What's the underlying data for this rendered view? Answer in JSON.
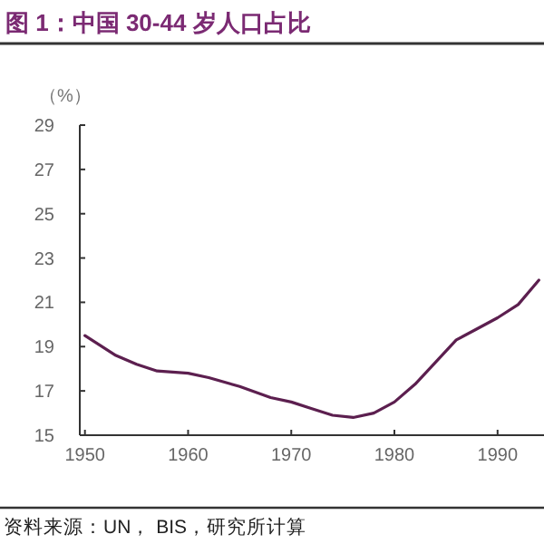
{
  "chart_data": {
    "type": "line",
    "title": "图 1：中国 30-44 岁人口占比",
    "ylabel": "（%）",
    "annotations": [
      "资料来源：UN， BIS，研究所计算"
    ],
    "x": [
      1950,
      1953,
      1955,
      1957,
      1960,
      1962,
      1965,
      1968,
      1970,
      1972,
      1974,
      1976,
      1978,
      1980,
      1982,
      1984,
      1986,
      1988,
      1990,
      1992,
      1994
    ],
    "series": [
      {
        "color": "#5c1f4f",
        "values": [
          19.5,
          18.6,
          18.2,
          17.9,
          17.8,
          17.6,
          17.2,
          16.7,
          16.5,
          16.2,
          15.9,
          15.8,
          16.0,
          16.5,
          17.3,
          18.3,
          19.3,
          19.8,
          20.3,
          20.9,
          22.0
        ]
      }
    ],
    "xlim": [
      1949.5,
      1994.5
    ],
    "xticks": [
      1950,
      1960,
      1970,
      1980,
      1990
    ],
    "ylim": [
      15,
      29
    ],
    "yticks": [
      15,
      17,
      19,
      21,
      23,
      25,
      27,
      29
    ],
    "marker": "none",
    "line_style": "solid"
  }
}
